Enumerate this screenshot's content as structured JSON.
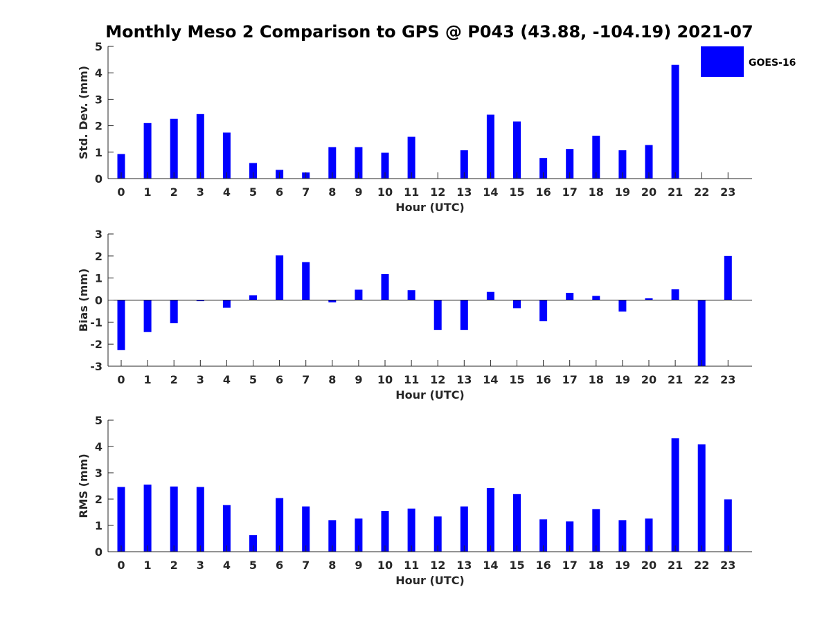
{
  "title": "Monthly Meso 2 Comparison to GPS @ P043 (43.88, -104.19) 2021-07",
  "legend": {
    "label": "GOES-16",
    "color": "#0000ff"
  },
  "colors": {
    "bar": "#0000ff",
    "axis": "#262626",
    "text": "#262626"
  },
  "chart_data": [
    {
      "type": "bar",
      "title": "Monthly Meso 2 Comparison to GPS @ P043 (43.88, -104.19) 2021-07",
      "xlabel": "Hour (UTC)",
      "ylabel": "Std. Dev. (mm)",
      "ylim": [
        0,
        5
      ],
      "yticks": [
        0,
        1,
        2,
        3,
        4,
        5
      ],
      "categories": [
        "0",
        "1",
        "2",
        "3",
        "4",
        "5",
        "6",
        "7",
        "8",
        "9",
        "10",
        "11",
        "12",
        "13",
        "14",
        "15",
        "16",
        "17",
        "18",
        "19",
        "20",
        "21",
        "22",
        "23"
      ],
      "series": [
        {
          "name": "GOES-16",
          "values": [
            0.93,
            2.1,
            2.26,
            2.44,
            1.74,
            0.59,
            0.33,
            0.23,
            1.19,
            1.19,
            0.98,
            1.58,
            0,
            1.07,
            2.42,
            2.16,
            0.78,
            1.12,
            1.62,
            1.07,
            1.27,
            4.3,
            0,
            0
          ]
        }
      ],
      "grid": false,
      "legend_position": "top-right"
    },
    {
      "type": "bar",
      "xlabel": "Hour (UTC)",
      "ylabel": "Bias (mm)",
      "ylim": [
        -3,
        3
      ],
      "yticks": [
        -3,
        -2,
        -1,
        0,
        1,
        2,
        3
      ],
      "categories": [
        "0",
        "1",
        "2",
        "3",
        "4",
        "5",
        "6",
        "7",
        "8",
        "9",
        "10",
        "11",
        "12",
        "13",
        "14",
        "15",
        "16",
        "17",
        "18",
        "19",
        "20",
        "21",
        "22",
        "23"
      ],
      "series": [
        {
          "name": "GOES-16",
          "values": [
            -2.27,
            -1.45,
            -1.05,
            -0.05,
            -0.35,
            0.22,
            2.03,
            1.72,
            -0.1,
            0.47,
            1.18,
            0.45,
            -1.36,
            -1.36,
            0.37,
            -0.37,
            -0.96,
            0.33,
            0.19,
            -0.52,
            0.08,
            0.49,
            -3.0,
            2.0
          ]
        }
      ],
      "grid": false
    },
    {
      "type": "bar",
      "xlabel": "Hour (UTC)",
      "ylabel": "RMS (mm)",
      "ylim": [
        0,
        5
      ],
      "yticks": [
        0,
        1,
        2,
        3,
        4,
        5
      ],
      "categories": [
        "0",
        "1",
        "2",
        "3",
        "4",
        "5",
        "6",
        "7",
        "8",
        "9",
        "10",
        "11",
        "12",
        "13",
        "14",
        "15",
        "16",
        "17",
        "18",
        "19",
        "20",
        "21",
        "22",
        "23"
      ],
      "series": [
        {
          "name": "GOES-16",
          "values": [
            2.46,
            2.55,
            2.48,
            2.46,
            1.77,
            0.63,
            2.04,
            1.72,
            1.2,
            1.26,
            1.55,
            1.64,
            1.34,
            1.72,
            2.42,
            2.19,
            1.23,
            1.15,
            1.62,
            1.2,
            1.26,
            4.31,
            4.08,
            1.99
          ]
        }
      ],
      "grid": false
    }
  ]
}
